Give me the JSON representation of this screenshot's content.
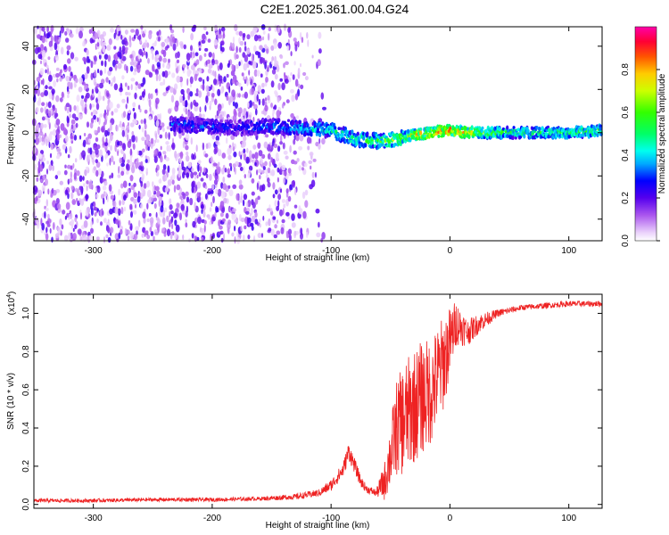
{
  "title": "C2E1.2025.361.00.04.G24",
  "chart_data": [
    {
      "type": "heatmap",
      "name": "spectrogram",
      "xlabel": "Height of straight line (km)",
      "ylabel": "Frequency (Hz)",
      "xlim": [
        -350,
        128
      ],
      "ylim": [
        -50,
        49
      ],
      "xticks": [
        -300,
        -200,
        -100,
        0,
        100
      ],
      "xtick_labels": [
        "-300",
        "-200",
        "-100",
        "0",
        "100"
      ],
      "yticks": [
        -40,
        -20,
        0,
        20,
        40
      ],
      "ytick_labels": [
        "-40",
        "-20",
        "0",
        "20",
        "40"
      ],
      "colorbar": {
        "label": "Normalized spectral amplitude",
        "range": [
          0,
          1
        ],
        "ticks": [
          0.0,
          0.2,
          0.4,
          0.6,
          0.8
        ],
        "tick_labels": [
          "0.0",
          "0.2",
          "0.4",
          "0.6",
          "0.8"
        ],
        "stops": [
          {
            "v": 0.0,
            "color": "#ffffff"
          },
          {
            "v": 0.04,
            "color": "#e9cffb"
          },
          {
            "v": 0.12,
            "color": "#aa55ee"
          },
          {
            "v": 0.2,
            "color": "#5500ee"
          },
          {
            "v": 0.28,
            "color": "#0000ff"
          },
          {
            "v": 0.36,
            "color": "#00aaff"
          },
          {
            "v": 0.42,
            "color": "#00ffee"
          },
          {
            "v": 0.5,
            "color": "#00ff66"
          },
          {
            "v": 0.6,
            "color": "#33ff00"
          },
          {
            "v": 0.7,
            "color": "#ccff00"
          },
          {
            "v": 0.78,
            "color": "#ffcc00"
          },
          {
            "v": 0.86,
            "color": "#ff5500"
          },
          {
            "v": 0.93,
            "color": "#ff0033"
          },
          {
            "v": 1.0,
            "color": "#ff00aa"
          }
        ]
      },
      "description_of_signal": {
        "noise_region_x": [
          -350,
          -110
        ],
        "tone_track": [
          {
            "x": -235,
            "y": 4,
            "v": 0.35
          },
          {
            "x": -205,
            "y": 3,
            "v": 0.33
          },
          {
            "x": -180,
            "y": 2,
            "v": 0.3
          },
          {
            "x": -150,
            "y": 3,
            "v": 0.36
          },
          {
            "x": -125,
            "y": 2,
            "v": 0.42
          },
          {
            "x": -100,
            "y": 1,
            "v": 0.5
          },
          {
            "x": -80,
            "y": -3,
            "v": 0.55
          },
          {
            "x": -60,
            "y": -4,
            "v": 0.6
          },
          {
            "x": -45,
            "y": -3,
            "v": 0.68
          },
          {
            "x": -30,
            "y": -1,
            "v": 0.78
          },
          {
            "x": -15,
            "y": 0,
            "v": 0.9
          },
          {
            "x": 0,
            "y": 1,
            "v": 0.92
          },
          {
            "x": 15,
            "y": 0,
            "v": 0.8
          },
          {
            "x": 50,
            "y": 0,
            "v": 0.55
          },
          {
            "x": 100,
            "y": 0,
            "v": 0.55
          },
          {
            "x": 128,
            "y": 1,
            "v": 0.6
          }
        ]
      }
    },
    {
      "type": "line",
      "name": "snr",
      "xlabel": "Height of straight line (km)",
      "ylabel": "SNR (10 * v/v)",
      "y_multiplier": "(x10",
      "y_multiplier_exp": "4",
      "y_multiplier_close": ")",
      "xlim": [
        -350,
        128
      ],
      "ylim": [
        -0.02,
        1.1
      ],
      "xticks": [
        -300,
        -200,
        -100,
        0,
        100
      ],
      "xtick_labels": [
        "-300",
        "-200",
        "-100",
        "0",
        "100"
      ],
      "yticks": [
        0.0,
        0.2,
        0.4,
        0.6,
        0.8,
        1.0
      ],
      "ytick_labels": [
        "0.0",
        "0.2",
        "0.4",
        "0.6",
        "0.8",
        "1.0"
      ],
      "color": "#ee2222",
      "series": [
        {
          "name": "SNR",
          "x": [
            -350,
            -300,
            -250,
            -200,
            -160,
            -130,
            -110,
            -100,
            -90,
            -85,
            -80,
            -75,
            -70,
            -62,
            -55,
            -45,
            -38,
            -32,
            -25,
            -15,
            -5,
            5,
            15,
            25,
            40,
            60,
            80,
            100,
            128
          ],
          "y": [
            0.02,
            0.02,
            0.025,
            0.025,
            0.03,
            0.04,
            0.06,
            0.1,
            0.18,
            0.28,
            0.2,
            0.12,
            0.08,
            0.06,
            0.12,
            0.4,
            0.45,
            0.5,
            0.55,
            0.6,
            0.75,
            0.95,
            0.9,
            0.95,
            1.0,
            1.03,
            1.04,
            1.05,
            1.05
          ],
          "spread": [
            0.01,
            0.01,
            0.01,
            0.01,
            0.01,
            0.015,
            0.02,
            0.03,
            0.04,
            0.05,
            0.04,
            0.03,
            0.02,
            0.02,
            0.1,
            0.25,
            0.3,
            0.3,
            0.3,
            0.28,
            0.25,
            0.12,
            0.07,
            0.05,
            0.02,
            0.015,
            0.015,
            0.015,
            0.015
          ]
        }
      ]
    }
  ]
}
